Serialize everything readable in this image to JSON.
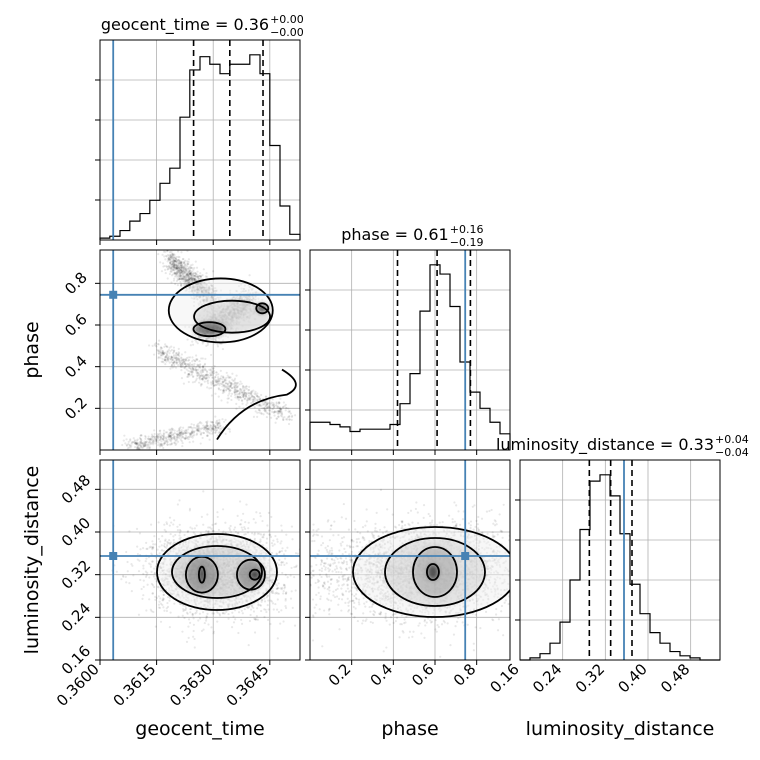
{
  "chart_data": {
    "type": "corner",
    "parameters": [
      "geocent_time",
      "phase",
      "luminosity_distance"
    ],
    "truth_color": "#4682b4",
    "truths": {
      "geocent_time": 0.36035,
      "phase": 0.745,
      "luminosity_distance": 0.355
    },
    "axes": {
      "geocent_time": {
        "range": [
          0.36,
          0.3653
        ],
        "ticks": [
          0.36,
          0.3615,
          0.363,
          0.3645
        ],
        "tick_labels": [
          "0.3600",
          "0.3615",
          "0.3630",
          "0.3645"
        ],
        "label": "geocent_time"
      },
      "phase": {
        "range": [
          0.0,
          0.96
        ],
        "ticks": [
          0.2,
          0.4,
          0.6,
          0.8
        ],
        "tick_labels": [
          "0.2",
          "0.4",
          "0.6",
          "0.8"
        ],
        "label": "phase"
      },
      "luminosity_distance": {
        "range": [
          0.16,
          0.535
        ],
        "ticks": [
          0.16,
          0.24,
          0.32,
          0.4,
          0.48
        ],
        "tick_labels": [
          "0.16",
          "0.24",
          "0.32",
          "0.40",
          "0.48"
        ],
        "label": "luminosity_distance"
      }
    },
    "titles": {
      "geocent_time": {
        "main": "geocent_time = 0.36",
        "plus": "+0.00",
        "minus": "−0.00"
      },
      "phase": {
        "main": "phase = 0.61",
        "plus": "+0.16",
        "minus": "−0.19"
      },
      "luminosity_distance": {
        "main": "luminosity_distance = 0.33",
        "plus": "+0.04",
        "minus": "−0.04"
      }
    },
    "quantiles": {
      "geocent_time": [
        0.36248,
        0.36344,
        0.36432
      ],
      "phase": [
        0.42,
        0.61,
        0.77
      ],
      "luminosity_distance": [
        0.29,
        0.33,
        0.37
      ]
    },
    "histograms": {
      "geocent_time": {
        "edges": [
          0.36,
          0.36026,
          0.36053,
          0.36079,
          0.36106,
          0.36132,
          0.36159,
          0.36185,
          0.36212,
          0.36238,
          0.36265,
          0.36291,
          0.36318,
          0.36344,
          0.36371,
          0.36397,
          0.36424,
          0.3645,
          0.36477,
          0.36503,
          0.3653
        ],
        "counts": [
          1,
          2,
          5,
          10,
          14,
          21,
          30,
          38,
          65,
          90,
          97,
          93,
          88,
          93,
          93,
          98,
          88,
          50,
          18,
          3
        ]
      },
      "phase": {
        "edges": [
          0.0,
          0.048,
          0.096,
          0.144,
          0.192,
          0.24,
          0.288,
          0.336,
          0.384,
          0.432,
          0.48,
          0.528,
          0.576,
          0.624,
          0.672,
          0.72,
          0.768,
          0.816,
          0.864,
          0.912,
          0.96
        ],
        "counts": [
          12,
          12,
          11,
          10,
          8,
          9,
          9,
          9,
          11,
          20,
          33,
          60,
          80,
          76,
          62,
          38,
          25,
          18,
          12,
          7
        ]
      },
      "luminosity_distance": {
        "edges": [
          0.16,
          0.17875,
          0.1975,
          0.21625,
          0.235,
          0.25375,
          0.2725,
          0.29125,
          0.31,
          0.32875,
          0.3475,
          0.36625,
          0.385,
          0.40375,
          0.4225,
          0.44125,
          0.46,
          0.47875,
          0.4975,
          0.51625,
          0.535
        ],
        "counts": [
          0,
          1,
          3,
          8,
          18,
          38,
          62,
          85,
          88,
          78,
          60,
          36,
          22,
          13,
          8,
          4,
          2,
          1,
          0,
          0
        ]
      }
    }
  }
}
